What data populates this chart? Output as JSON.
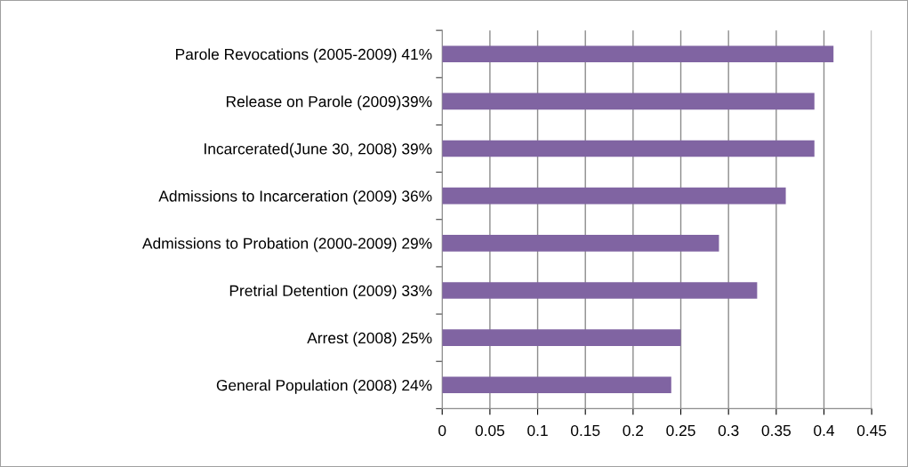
{
  "chart_data": {
    "type": "bar",
    "orientation": "horizontal",
    "categories": [
      "Parole Revocations (2005-2009) 41%",
      "Release on Parole (2009)39%",
      "Incarcerated(June 30, 2008) 39%",
      "Admissions to Incarceration (2009) 36%",
      "Admissions to Probation (2000-2009) 29%",
      "Pretrial Detention (2009) 33%",
      "Arrest (2008) 25%",
      "General Population (2008) 24%"
    ],
    "values": [
      0.41,
      0.39,
      0.39,
      0.36,
      0.29,
      0.33,
      0.25,
      0.24
    ],
    "color": "#8064a2",
    "xlim": [
      0,
      0.45
    ],
    "xticks": [
      0,
      0.05,
      0.1,
      0.15,
      0.2,
      0.25,
      0.3,
      0.35,
      0.4,
      0.45
    ],
    "grid": "x",
    "legend": false
  }
}
